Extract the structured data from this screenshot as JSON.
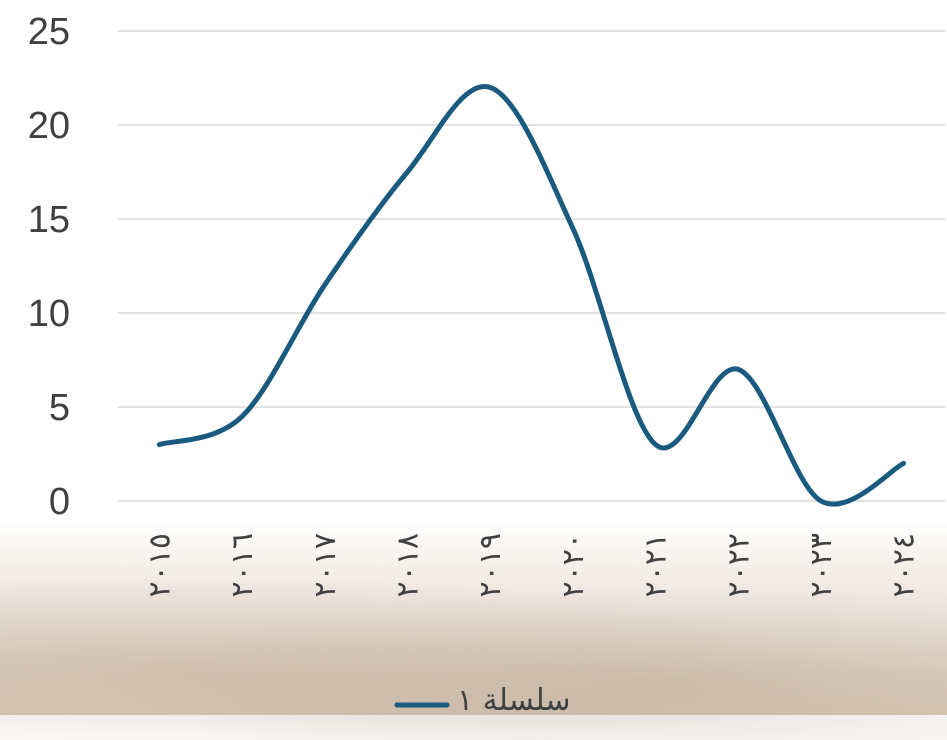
{
  "chart_data": {
    "type": "line",
    "categories": [
      "٢٠١٥",
      "٢٠١٦",
      "٢٠١٧",
      "٢٠١٨",
      "٢٠١٩",
      "٢٠٢٠",
      "٢٠٢١",
      "٢٠٢٢",
      "٢٠٢٣",
      "٢٠٢٤"
    ],
    "series": [
      {
        "name": "سلسلة ١",
        "values": [
          3,
          4.5,
          11.5,
          17.5,
          22,
          14.5,
          3,
          7,
          0,
          2
        ],
        "color": "#1a5a7e"
      }
    ],
    "y_ticks": [
      "0",
      "5",
      "10",
      "15",
      "20",
      "25"
    ],
    "ylim": [
      0,
      25
    ],
    "grid": true,
    "legend_position": "bottom",
    "smooth": true
  }
}
